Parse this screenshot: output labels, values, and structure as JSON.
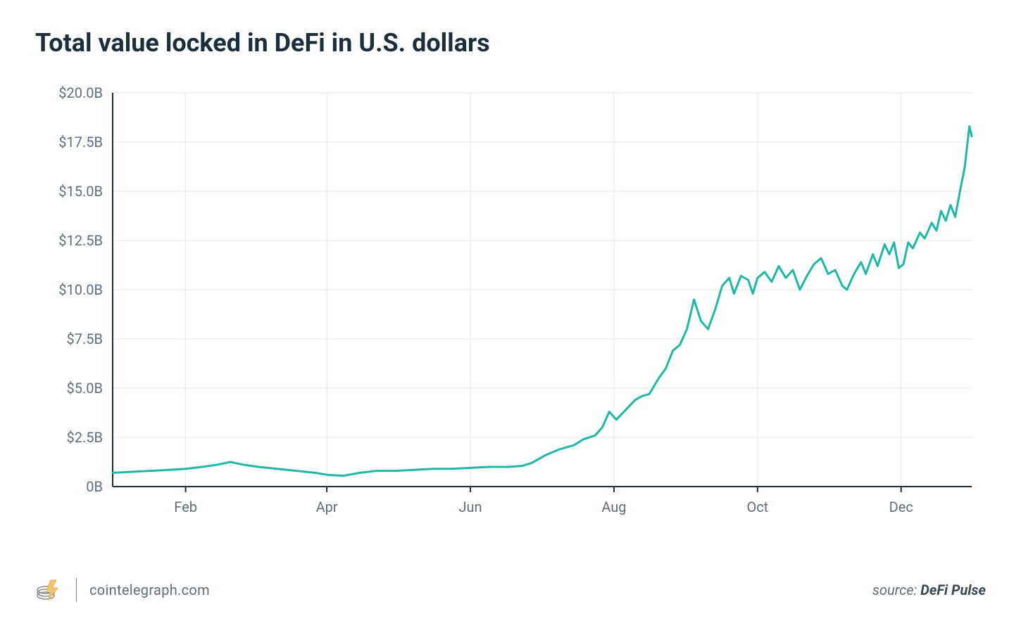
{
  "title": "Total value locked in DeFi in U.S. dollars",
  "footer": {
    "site": "cointelegraph.com",
    "source_prefix": "source: ",
    "source_name": "DeFi Pulse"
  },
  "chart": {
    "type": "line",
    "background_color": "#ffffff",
    "grid_color": "#e5e8ea",
    "axis_color": "#1a2e3b",
    "label_color": "#5f6f79",
    "label_fontsize": 20,
    "line_color": "#1fb8a6",
    "line_width": 3,
    "ylim": [
      0,
      20
    ],
    "yticks": [
      {
        "v": 0,
        "label": "0B"
      },
      {
        "v": 2.5,
        "label": "$2.5B"
      },
      {
        "v": 5.0,
        "label": "$5.0B"
      },
      {
        "v": 7.5,
        "label": "$7.5B"
      },
      {
        "v": 10.0,
        "label": "$10.0B"
      },
      {
        "v": 12.5,
        "label": "$12.5B"
      },
      {
        "v": 15.0,
        "label": "$15.0B"
      },
      {
        "v": 17.5,
        "label": "$17.5B"
      },
      {
        "v": 20.0,
        "label": "$20.0B"
      }
    ],
    "xlim": [
      0,
      365
    ],
    "xticks": [
      {
        "v": 31,
        "label": "Feb"
      },
      {
        "v": 91,
        "label": "Apr"
      },
      {
        "v": 152,
        "label": "Jun"
      },
      {
        "v": 213,
        "label": "Aug"
      },
      {
        "v": 274,
        "label": "Oct"
      },
      {
        "v": 335,
        "label": "Dec"
      }
    ],
    "series": [
      {
        "x": 0,
        "y": 0.7
      },
      {
        "x": 8,
        "y": 0.75
      },
      {
        "x": 16,
        "y": 0.8
      },
      {
        "x": 24,
        "y": 0.85
      },
      {
        "x": 31,
        "y": 0.9
      },
      {
        "x": 38,
        "y": 1.0
      },
      {
        "x": 44,
        "y": 1.1
      },
      {
        "x": 50,
        "y": 1.25
      },
      {
        "x": 56,
        "y": 1.1
      },
      {
        "x": 62,
        "y": 1.0
      },
      {
        "x": 70,
        "y": 0.9
      },
      {
        "x": 78,
        "y": 0.8
      },
      {
        "x": 86,
        "y": 0.7
      },
      {
        "x": 91,
        "y": 0.6
      },
      {
        "x": 98,
        "y": 0.55
      },
      {
        "x": 105,
        "y": 0.7
      },
      {
        "x": 112,
        "y": 0.8
      },
      {
        "x": 120,
        "y": 0.8
      },
      {
        "x": 128,
        "y": 0.85
      },
      {
        "x": 136,
        "y": 0.9
      },
      {
        "x": 144,
        "y": 0.9
      },
      {
        "x": 152,
        "y": 0.95
      },
      {
        "x": 160,
        "y": 1.0
      },
      {
        "x": 168,
        "y": 1.0
      },
      {
        "x": 174,
        "y": 1.05
      },
      {
        "x": 178,
        "y": 1.2
      },
      {
        "x": 184,
        "y": 1.6
      },
      {
        "x": 190,
        "y": 1.9
      },
      {
        "x": 196,
        "y": 2.1
      },
      {
        "x": 200,
        "y": 2.4
      },
      {
        "x": 205,
        "y": 2.6
      },
      {
        "x": 208,
        "y": 3.0
      },
      {
        "x": 211,
        "y": 3.8
      },
      {
        "x": 214,
        "y": 3.4
      },
      {
        "x": 218,
        "y": 3.9
      },
      {
        "x": 222,
        "y": 4.4
      },
      {
        "x": 225,
        "y": 4.6
      },
      {
        "x": 228,
        "y": 4.7
      },
      {
        "x": 232,
        "y": 5.5
      },
      {
        "x": 235,
        "y": 6.0
      },
      {
        "x": 238,
        "y": 6.9
      },
      {
        "x": 241,
        "y": 7.2
      },
      {
        "x": 244,
        "y": 8.0
      },
      {
        "x": 247,
        "y": 9.5
      },
      {
        "x": 250,
        "y": 8.4
      },
      {
        "x": 253,
        "y": 8.0
      },
      {
        "x": 256,
        "y": 9.0
      },
      {
        "x": 259,
        "y": 10.2
      },
      {
        "x": 262,
        "y": 10.6
      },
      {
        "x": 264,
        "y": 9.8
      },
      {
        "x": 267,
        "y": 10.7
      },
      {
        "x": 270,
        "y": 10.5
      },
      {
        "x": 272,
        "y": 9.8
      },
      {
        "x": 274,
        "y": 10.6
      },
      {
        "x": 277,
        "y": 10.9
      },
      {
        "x": 280,
        "y": 10.4
      },
      {
        "x": 283,
        "y": 11.2
      },
      {
        "x": 286,
        "y": 10.6
      },
      {
        "x": 289,
        "y": 11.0
      },
      {
        "x": 292,
        "y": 10.0
      },
      {
        "x": 295,
        "y": 10.7
      },
      {
        "x": 298,
        "y": 11.3
      },
      {
        "x": 301,
        "y": 11.6
      },
      {
        "x": 304,
        "y": 10.8
      },
      {
        "x": 307,
        "y": 11.0
      },
      {
        "x": 310,
        "y": 10.2
      },
      {
        "x": 312,
        "y": 10.0
      },
      {
        "x": 315,
        "y": 10.8
      },
      {
        "x": 318,
        "y": 11.4
      },
      {
        "x": 320,
        "y": 10.8
      },
      {
        "x": 323,
        "y": 11.8
      },
      {
        "x": 325,
        "y": 11.2
      },
      {
        "x": 328,
        "y": 12.3
      },
      {
        "x": 330,
        "y": 11.8
      },
      {
        "x": 332,
        "y": 12.4
      },
      {
        "x": 334,
        "y": 11.1
      },
      {
        "x": 336,
        "y": 11.3
      },
      {
        "x": 338,
        "y": 12.4
      },
      {
        "x": 340,
        "y": 12.1
      },
      {
        "x": 343,
        "y": 12.9
      },
      {
        "x": 345,
        "y": 12.6
      },
      {
        "x": 348,
        "y": 13.4
      },
      {
        "x": 350,
        "y": 13.0
      },
      {
        "x": 352,
        "y": 14.0
      },
      {
        "x": 354,
        "y": 13.5
      },
      {
        "x": 356,
        "y": 14.3
      },
      {
        "x": 358,
        "y": 13.7
      },
      {
        "x": 360,
        "y": 15.0
      },
      {
        "x": 362,
        "y": 16.2
      },
      {
        "x": 364,
        "y": 18.3
      },
      {
        "x": 365,
        "y": 17.8
      }
    ]
  }
}
